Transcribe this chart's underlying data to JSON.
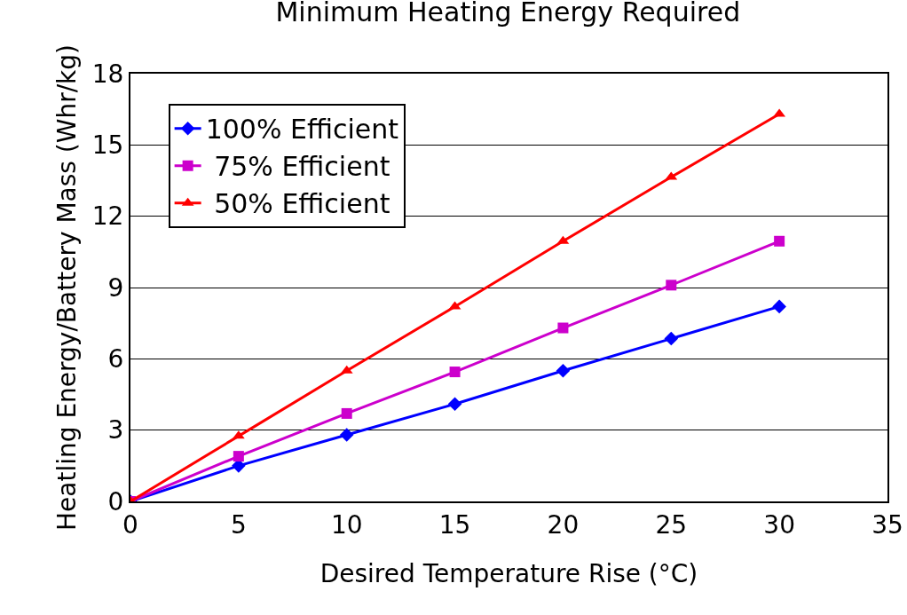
{
  "chart_data": {
    "type": "line",
    "title": "Minimum Heating Energy Required",
    "xlabel": "Desired Temperature Rise (°C)",
    "ylabel": "Heatling Energy/Battery Mass (Whr/kg)",
    "x": [
      0,
      5,
      10,
      15,
      20,
      25,
      30
    ],
    "series": [
      {
        "name": "100% Efficient",
        "color": "#0000ff",
        "marker": "diamond",
        "values": [
          0,
          1.5,
          2.8,
          4.1,
          5.5,
          6.85,
          8.2
        ]
      },
      {
        "name": " 75% Efficient",
        "color": "#cc00cc",
        "marker": "square",
        "values": [
          0,
          1.9,
          3.7,
          5.45,
          7.3,
          9.1,
          10.95
        ]
      },
      {
        "name": " 50% Efficient",
        "color": "#ff0000",
        "marker": "triangle",
        "values": [
          0,
          2.75,
          5.5,
          8.2,
          10.95,
          13.65,
          16.3
        ]
      }
    ],
    "xlim": [
      0,
      35
    ],
    "xticks": [
      0,
      5,
      10,
      15,
      20,
      25,
      30,
      35
    ],
    "ylim": [
      0,
      18
    ],
    "yticks": [
      0,
      3,
      6,
      9,
      12,
      15,
      18
    ],
    "grid": "y",
    "legend": "top left",
    "line_style": "solid"
  }
}
